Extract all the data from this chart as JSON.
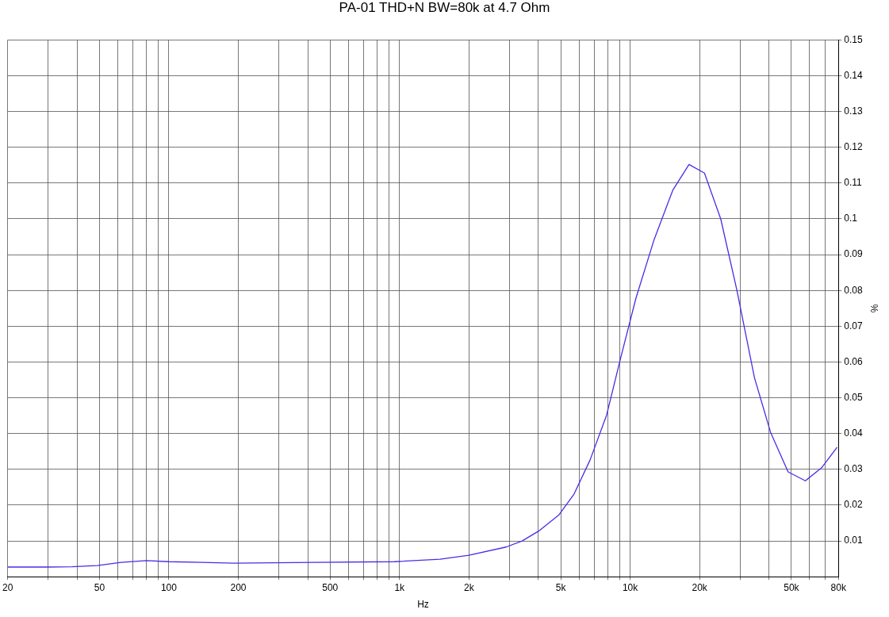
{
  "chart_data": {
    "type": "line",
    "title": "PA-01 THD+N BW=80k at 4.7 Ohm",
    "xlabel": "Hz",
    "ylabel": "%",
    "log": "x",
    "grid": true,
    "legend": false,
    "marker": "none",
    "line_style": "solid",
    "xlim": [
      20,
      80000
    ],
    "ylim": [
      0,
      0.15
    ],
    "xticks": [
      20,
      {
        "value": 30,
        "label": null
      },
      {
        "value": 40,
        "label": null
      },
      50,
      {
        "value": 60,
        "label": null
      },
      {
        "value": 70,
        "label": null
      },
      {
        "value": 80,
        "label": null
      },
      {
        "value": 90,
        "label": null
      },
      100,
      200,
      {
        "value": 300,
        "label": null
      },
      {
        "value": 400,
        "label": null
      },
      500,
      {
        "value": 600,
        "label": null
      },
      {
        "value": 700,
        "label": null
      },
      {
        "value": 800,
        "label": null
      },
      {
        "value": 900,
        "label": null
      },
      {
        "value": 1000,
        "label": "1k"
      },
      {
        "value": 2000,
        "label": "2k"
      },
      {
        "value": 3000,
        "label": null
      },
      {
        "value": 4000,
        "label": null
      },
      {
        "value": 5000,
        "label": "5k"
      },
      {
        "value": 6000,
        "label": null
      },
      {
        "value": 7000,
        "label": null
      },
      {
        "value": 8000,
        "label": null
      },
      {
        "value": 9000,
        "label": null
      },
      {
        "value": 10000,
        "label": "10k"
      },
      {
        "value": 20000,
        "label": "20k"
      },
      {
        "value": 30000,
        "label": null
      },
      {
        "value": 40000,
        "label": null
      },
      {
        "value": 50000,
        "label": "50k"
      },
      {
        "value": 60000,
        "label": null
      },
      {
        "value": 70000,
        "label": null
      },
      {
        "value": 80000,
        "label": "80k"
      }
    ],
    "yticks": [
      0.01,
      0.02,
      0.03,
      0.04,
      0.05,
      0.06,
      0.07,
      0.08,
      0.09,
      0.1,
      0.11,
      0.12,
      0.13,
      0.14,
      0.15
    ],
    "series": [
      {
        "color": "#4b2be8",
        "x": [
          20,
          24,
          30,
          38,
          49,
          62,
          80,
          100,
          192,
          428,
          950,
          1500,
          2000,
          2900,
          3400,
          4000,
          4900,
          5700,
          6700,
          7900,
          9100,
          10600,
          12700,
          15300,
          18000,
          21000,
          24700,
          29000,
          34600,
          40600,
          48400,
          57500,
          67500,
          79000
        ],
        "values": [
          0.0027,
          0.0027,
          0.0027,
          0.0028,
          0.0031,
          0.004,
          0.0045,
          0.0042,
          0.0038,
          0.004,
          0.0042,
          0.0049,
          0.006,
          0.0083,
          0.01,
          0.0127,
          0.0172,
          0.023,
          0.0326,
          0.0451,
          0.0612,
          0.0779,
          0.0942,
          0.108,
          0.1152,
          0.1128,
          0.1,
          0.0802,
          0.0556,
          0.0404,
          0.0293,
          0.0268,
          0.0304,
          0.0362
        ]
      }
    ]
  }
}
